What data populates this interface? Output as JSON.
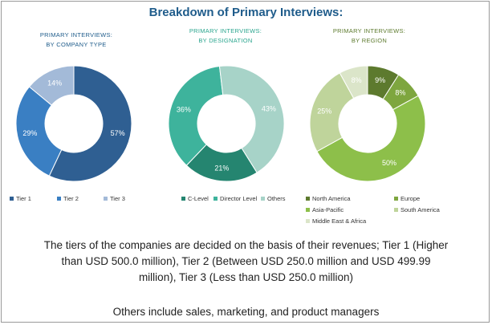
{
  "title": "Breakdown of Primary Interviews:",
  "colors": {
    "title": "#1f5c8b",
    "chart1_subtitle": "#1f5c8b",
    "chart2_subtitle": "#2aa58e",
    "chart3_subtitle": "#5d7a2e"
  },
  "chart_data": [
    {
      "type": "pie",
      "donut": true,
      "title": [
        "PRIMARY INTERVIEWS:",
        "BY COMPANY TYPE"
      ],
      "categories": [
        "Tier 1",
        "Tier 2",
        "Tier 3"
      ],
      "values": [
        57,
        29,
        14
      ],
      "labels": [
        "57%",
        "29%",
        "14%"
      ],
      "colors": [
        "#2f5f92",
        "#3a7fc3",
        "#a3bad8"
      ],
      "legend": "bottom"
    },
    {
      "type": "pie",
      "donut": true,
      "title": [
        "PRIMARY INTERVIEWS:",
        "BY DESIGNATION"
      ],
      "categories": [
        "C-Level",
        "Director Level",
        "Others"
      ],
      "values": [
        21,
        36,
        43
      ],
      "labels": [
        "21%",
        "36%",
        "43%"
      ],
      "colors": [
        "#258570",
        "#3eb39c",
        "#a7d3c8"
      ],
      "legend": "bottom"
    },
    {
      "type": "pie",
      "donut": true,
      "title": [
        "PRIMARY INTERVIEWS:",
        "BY REGION"
      ],
      "categories": [
        "North America",
        "Europe",
        "Asia-Pacific",
        "South America",
        "Middle East & Africa"
      ],
      "values": [
        9,
        8,
        50,
        25,
        8
      ],
      "labels": [
        "9%",
        "8%",
        "50%",
        "25%",
        "8%"
      ],
      "colors": [
        "#5d7a2e",
        "#7ea63f",
        "#8dbf4a",
        "#bfd49b",
        "#dbe5c9"
      ],
      "legend": "bottom"
    }
  ],
  "footnote": {
    "line1": "The tiers of the companies are decided on the basis of their revenues; Tier 1 (Higher",
    "line2": "than USD 500.0 million), Tier 2 (Between USD 250.0 million  and USD 499.99",
    "line3": "million), Tier 3 (Less than USD 250.0 million)",
    "others": "Others include  sales, marketing, and product managers"
  }
}
